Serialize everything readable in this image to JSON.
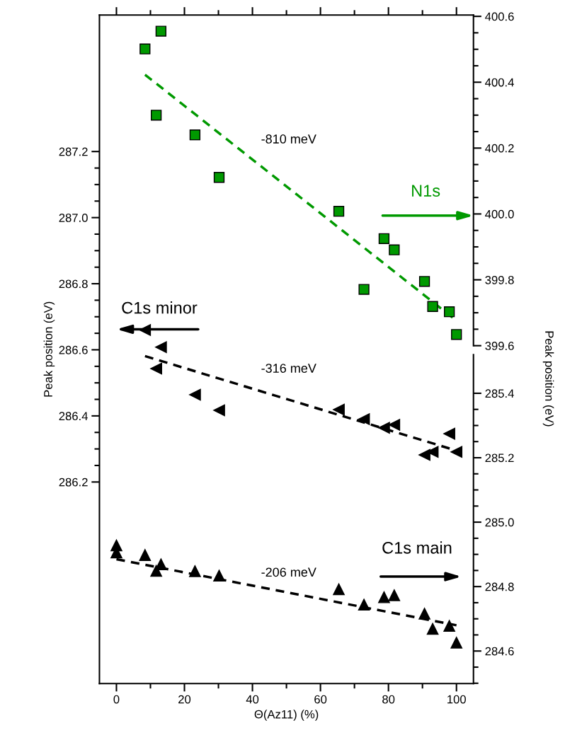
{
  "chart_data": {
    "type": "scatter",
    "xlabel": "Θ(Az11) (%)",
    "ylabel": "Peak position (eV)",
    "y2label": "Peak position (eV)",
    "xlim": [
      -5,
      105
    ],
    "xticks": [
      0,
      20,
      40,
      60,
      80,
      100
    ],
    "ylim": [
      285.59,
      287.613
    ],
    "yticks": [
      286.2,
      286.4,
      286.6,
      286.8,
      {
        "value": 287,
        "label": "287.0"
      },
      287.2
    ],
    "y2lim": [
      398.574,
      400.604
    ],
    "y2ticks": [
      399.6,
      399.8,
      {
        "value": 400,
        "label": "400.0"
      },
      400.2,
      400.4,
      400.6
    ],
    "y3lim": [
      284.499,
      286.574
    ],
    "y3ticks": [
      284.6,
      284.8,
      {
        "value": 285,
        "label": "285.0"
      },
      285.2,
      285.4
    ],
    "annotations": [
      "-810 meV",
      "-316 meV",
      "-206 meV"
    ],
    "series": [
      {
        "name": "N1s",
        "axis": "y2",
        "marker": "square",
        "color": "#009900",
        "x": [
          8.4,
          13.1,
          11.7,
          23.1,
          30.2,
          65.4,
          72.8,
          78.7,
          81.7,
          90.6,
          93.0,
          97.9,
          100
        ],
        "values": [
          400.501,
          400.555,
          400.3,
          400.24,
          400.111,
          400.008,
          399.771,
          399.925,
          399.891,
          399.795,
          399.719,
          399.703,
          399.634
        ]
      },
      {
        "name": "C1s minor",
        "axis": "y",
        "marker": "triangle",
        "color": "#000000",
        "x": [
          8.4,
          13.1,
          11.7,
          23.1,
          30.2,
          65.4,
          72.8,
          78.7,
          81.7,
          90.6,
          93.0,
          97.9,
          100
        ],
        "values": [
          286.66,
          286.608,
          286.543,
          286.464,
          286.417,
          286.419,
          286.39,
          286.364,
          286.373,
          286.282,
          286.291,
          286.346,
          286.291
        ]
      },
      {
        "name": "C1s main",
        "axis": "y3",
        "marker": "triangle",
        "color": "#000000",
        "x": [
          0,
          0,
          8.4,
          13.1,
          11.7,
          23.1,
          30.2,
          65.4,
          72.8,
          78.7,
          81.7,
          90.6,
          93.0,
          97.9,
          100
        ],
        "values": [
          284.928,
          284.906,
          284.898,
          284.869,
          284.849,
          284.848,
          284.834,
          284.792,
          284.744,
          284.767,
          284.773,
          284.716,
          284.669,
          284.678,
          284.626
        ]
      },
      {
        "type": "line",
        "axis": "y2",
        "line_style": "dashed",
        "color": "#009900",
        "x": [
          8.4,
          100
        ],
        "values": [
          400.423,
          399.676
        ]
      },
      {
        "type": "line",
        "axis": "y",
        "line_style": "dashed",
        "color": "#000000",
        "x": [
          8.4,
          100
        ],
        "values": [
          286.581,
          286.295
        ]
      },
      {
        "type": "line",
        "axis": "y3",
        "line_style": "dashed",
        "color": "#000000",
        "x": [
          0,
          100
        ],
        "values": [
          284.885,
          284.68
        ]
      }
    ]
  }
}
